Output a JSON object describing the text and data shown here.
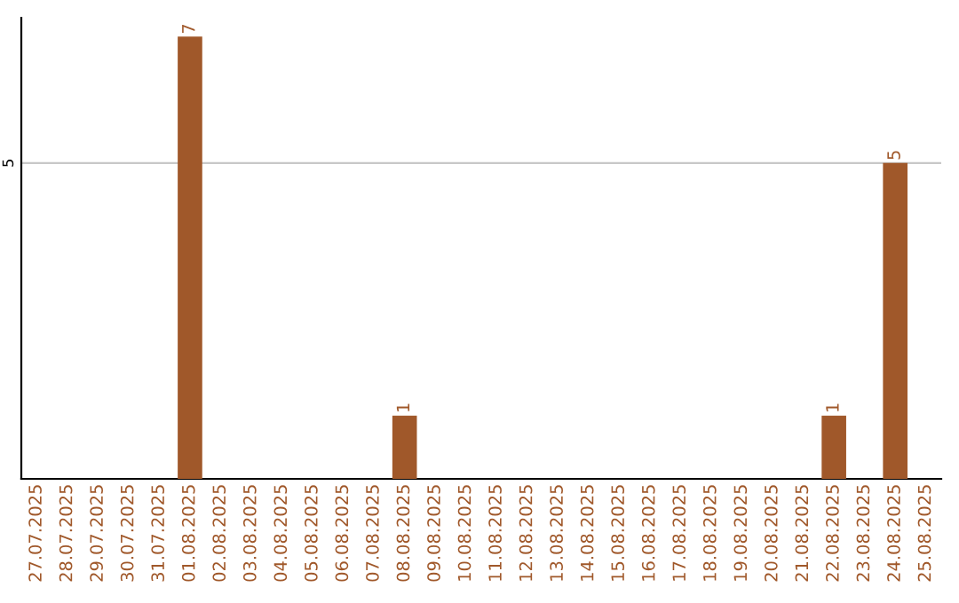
{
  "chart_data": {
    "type": "bar",
    "categories": [
      "27.07.2025",
      "28.07.2025",
      "29.07.2025",
      "30.07.2025",
      "31.07.2025",
      "01.08.2025",
      "02.08.2025",
      "03.08.2025",
      "04.08.2025",
      "05.08.2025",
      "06.08.2025",
      "07.08.2025",
      "08.08.2025",
      "09.08.2025",
      "10.08.2025",
      "11.08.2025",
      "12.08.2025",
      "13.08.2025",
      "14.08.2025",
      "15.08.2025",
      "16.08.2025",
      "17.08.2025",
      "18.08.2025",
      "19.08.2025",
      "20.08.2025",
      "21.08.2025",
      "22.08.2025",
      "23.08.2025",
      "24.08.2025",
      "25.08.2025"
    ],
    "values": [
      0,
      0,
      0,
      0,
      0,
      7,
      0,
      0,
      0,
      0,
      0,
      0,
      1,
      0,
      0,
      0,
      0,
      0,
      0,
      0,
      0,
      0,
      0,
      0,
      0,
      0,
      1,
      0,
      5,
      0
    ],
    "value_labels": [
      null,
      null,
      null,
      null,
      null,
      "7",
      null,
      null,
      null,
      null,
      null,
      null,
      "1",
      null,
      null,
      null,
      null,
      null,
      null,
      null,
      null,
      null,
      null,
      null,
      null,
      null,
      "1",
      null,
      "5",
      null
    ],
    "color": "#a0582a",
    "ylim": [
      0,
      7.3
    ],
    "yticks": [
      5
    ],
    "grid": "y"
  }
}
